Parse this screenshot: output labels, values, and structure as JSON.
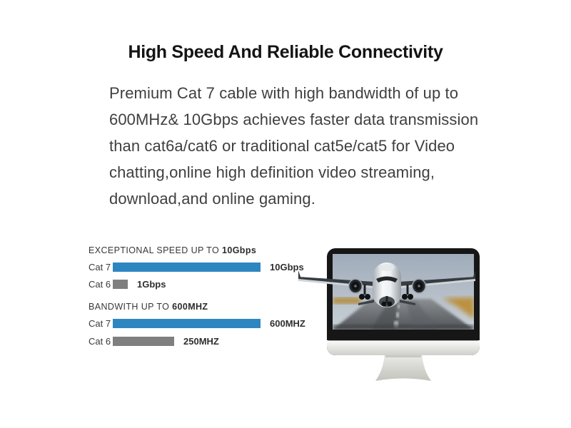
{
  "header": {
    "title": "High Speed And Reliable Connectivity"
  },
  "description": {
    "lines": [
      "Premium Cat 7 cable with high bandwidth of up to",
      "600MHz& 10Gbps achieves faster data transmission",
      "than cat6a/cat6 or traditional cat5e/cat5 for Video",
      "chatting,online high definition video streaming,",
      "download,and online gaming."
    ]
  },
  "chart_data": [
    {
      "type": "bar",
      "orientation": "horizontal",
      "title": "EXCEPTIONAL SPEED UP TO 10Gbps",
      "title_prefix": "EXCEPTIONAL SPEED UP TO ",
      "title_bold": "10Gbps",
      "categories": [
        "Cat 7",
        "Cat 6"
      ],
      "values": [
        10,
        1
      ],
      "unit": "Gbps",
      "value_labels": [
        "10Gbps",
        "1Gbps"
      ],
      "bar_colors": [
        "#2e86c1",
        "#7f7f7f"
      ],
      "xlim": [
        0,
        10
      ],
      "grid": false,
      "legend": false
    },
    {
      "type": "bar",
      "orientation": "horizontal",
      "title": "BANDWITH UP TO 600MHZ",
      "title_prefix": "BANDWITH UP TO ",
      "title_bold": "600MHZ",
      "categories": [
        "Cat 7",
        "Cat 6"
      ],
      "values": [
        600,
        250
      ],
      "unit": "MHZ",
      "value_labels": [
        "600MHZ",
        "250MHZ"
      ],
      "bar_colors": [
        "#2e86c1",
        "#7f7f7f"
      ],
      "xlim": [
        0,
        600
      ],
      "grid": false,
      "legend": false
    }
  ],
  "illustration": {
    "name": "monitor-with-airplane-takeoff",
    "colors": {
      "bezel": "#161616",
      "chin": "#e9e9e7",
      "stand": "#d6d6d0",
      "sky": "#a7b3c0",
      "runway": "#5d6165",
      "field": "#b9913f",
      "plane_body": "#f2f4f6",
      "plane_dark": "#373c42"
    }
  }
}
